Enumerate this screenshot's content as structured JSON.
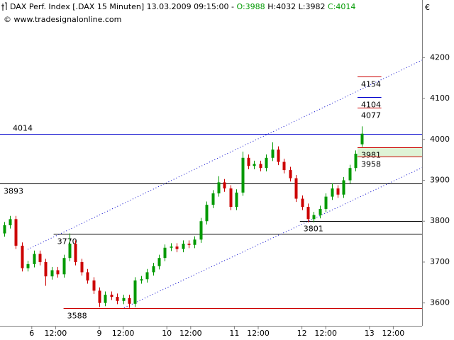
{
  "chart_data": {
    "type": "candlestick",
    "title": "DAX Perf. Index [.DAX  15 Minuten] 13.03.2009 09:15:00 -",
    "quote": {
      "open": "O:3988",
      "high": "H:4032",
      "low": "L:3982",
      "close": "C:4014"
    },
    "quote_colors": {
      "open": "#009900",
      "high": "#000000",
      "low": "#000000",
      "close": "#009900"
    },
    "source": "© www.tradesignalonline.com",
    "currency": "€",
    "up_color": "#009900",
    "down_color": "#cc0000",
    "x": [
      1,
      4,
      7,
      10,
      13,
      16,
      19,
      22,
      25,
      28,
      31,
      34,
      37,
      40,
      43,
      46,
      49,
      52,
      55,
      58,
      61,
      64,
      67,
      70,
      73,
      76,
      79,
      82,
      85,
      88,
      91,
      94,
      97,
      100,
      103,
      106,
      109,
      112,
      115,
      118,
      121,
      124,
      127,
      130,
      133,
      136,
      139,
      142,
      145,
      148,
      151,
      154,
      157,
      160,
      163,
      166,
      169,
      172,
      175,
      178,
      181
    ],
    "open": [
      3770,
      3790,
      3805,
      3740,
      3685,
      3695,
      3720,
      3700,
      3665,
      3680,
      3670,
      3710,
      3745,
      3700,
      3675,
      3655,
      3630,
      3600,
      3620,
      3615,
      3605,
      3612,
      3598,
      3655,
      3658,
      3675,
      3690,
      3710,
      3735,
      3738,
      3732,
      3745,
      3742,
      3755,
      3800,
      3840,
      3868,
      3895,
      3880,
      3835,
      3870,
      3955,
      3935,
      3940,
      3930,
      3955,
      3975,
      3945,
      3925,
      3905,
      3855,
      3835,
      3805,
      3815,
      3830,
      3860,
      3880,
      3865,
      3900,
      3930,
      3988
    ],
    "high": [
      3798,
      3813,
      3813,
      3748,
      3703,
      3728,
      3728,
      3708,
      3688,
      3688,
      3718,
      3770,
      3753,
      3708,
      3683,
      3663,
      3638,
      3628,
      3628,
      3623,
      3620,
      3620,
      3663,
      3666,
      3683,
      3698,
      3718,
      3743,
      3746,
      3746,
      3753,
      3753,
      3763,
      3808,
      3848,
      3876,
      3910,
      3903,
      3888,
      3878,
      3970,
      3963,
      3948,
      3948,
      3963,
      3993,
      3983,
      3953,
      3933,
      3913,
      3863,
      3843,
      3823,
      3838,
      3868,
      3893,
      3888,
      3908,
      3938,
      3973,
      4032
    ],
    "low": [
      3762,
      3782,
      3732,
      3677,
      3677,
      3687,
      3692,
      3642,
      3657,
      3662,
      3662,
      3702,
      3692,
      3667,
      3647,
      3622,
      3590,
      3592,
      3607,
      3597,
      3597,
      3588,
      3590,
      3647,
      3650,
      3667,
      3682,
      3702,
      3727,
      3724,
      3724,
      3734,
      3734,
      3747,
      3792,
      3832,
      3860,
      3872,
      3827,
      3827,
      3862,
      3927,
      3927,
      3922,
      3922,
      3947,
      3937,
      3917,
      3897,
      3847,
      3827,
      3797,
      3797,
      3807,
      3822,
      3852,
      3857,
      3857,
      3892,
      3922,
      3982
    ],
    "close": [
      3790,
      3805,
      3740,
      3685,
      3695,
      3720,
      3700,
      3665,
      3680,
      3670,
      3710,
      3745,
      3700,
      3675,
      3655,
      3630,
      3600,
      3620,
      3615,
      3605,
      3612,
      3598,
      3655,
      3658,
      3675,
      3690,
      3710,
      3735,
      3738,
      3732,
      3745,
      3742,
      3755,
      3800,
      3840,
      3868,
      3895,
      3880,
      3835,
      3870,
      3955,
      3935,
      3940,
      3930,
      3955,
      3975,
      3945,
      3925,
      3905,
      3855,
      3835,
      3805,
      3815,
      3830,
      3860,
      3880,
      3865,
      3900,
      3930,
      3965,
      4014
    ],
    "xlim": [
      -1,
      211.5
    ],
    "ylim": [
      3544,
      4341
    ],
    "yticks": [
      3600,
      3700,
      3800,
      3900,
      4000,
      4100,
      4200
    ],
    "xticks": [
      {
        "value": 15,
        "label": "6"
      },
      {
        "value": 27,
        "label": "12:00"
      },
      {
        "value": 49,
        "label": "9"
      },
      {
        "value": 61,
        "label": "12:00"
      },
      {
        "value": 83,
        "label": "10"
      },
      {
        "value": 95,
        "label": "12:00"
      },
      {
        "value": 117,
        "label": "11"
      },
      {
        "value": 129,
        "label": "12:00"
      },
      {
        "value": 151,
        "label": "12"
      },
      {
        "value": 163,
        "label": "12:00"
      },
      {
        "value": 185,
        "label": "13"
      },
      {
        "value": 197,
        "label": "12:00"
      }
    ],
    "zones": [
      {
        "low": 3958,
        "high": 3981,
        "x_start": 179,
        "color": "#dff3d6"
      }
    ],
    "levels": [
      {
        "value": 4154,
        "color": "#cc0000",
        "x_start": 179,
        "x_end": 191,
        "label_position": "right"
      },
      {
        "value": 4104,
        "color": "#0000cc",
        "x_start": 179,
        "x_end": 191,
        "label_position": "right"
      },
      {
        "value": 4077,
        "color": "#cc0000",
        "x_start": 179,
        "x_end": 191,
        "label_position": "right"
      },
      {
        "value": 4014,
        "color": "#0000cc",
        "x_start": -1,
        "x_end": 211.5,
        "label_position": "left"
      },
      {
        "value": 3981,
        "color": "#cc0000",
        "x_start": 179,
        "x_end": 211.5,
        "label_position": "right"
      },
      {
        "value": 3958,
        "color": "#cc0000",
        "x_start": 179,
        "x_end": 211.5,
        "label_position": "right"
      },
      {
        "value": 3893,
        "color": "#000000",
        "x_start": -1,
        "x_end": 211.5,
        "label_position": "right"
      },
      {
        "value": 3801,
        "color": "#000000",
        "x_start": 150,
        "x_end": 211.5,
        "label_position": "right"
      },
      {
        "value": 3770,
        "color": "#000000",
        "x_start": 26,
        "x_end": 211.5,
        "label_position": "right"
      },
      {
        "value": 3588,
        "color": "#cc0000",
        "x_start": 31,
        "x_end": 211.5,
        "label_position": "right"
      }
    ],
    "trendlines": [
      {
        "x": [
          13,
          211.5
        ],
        "values": [
          3731,
          4194
        ],
        "color": "#0000cc"
      },
      {
        "x": [
          61.5,
          211.5
        ],
        "values": [
          3588,
          3931
        ],
        "color": "#0000cc"
      }
    ]
  }
}
